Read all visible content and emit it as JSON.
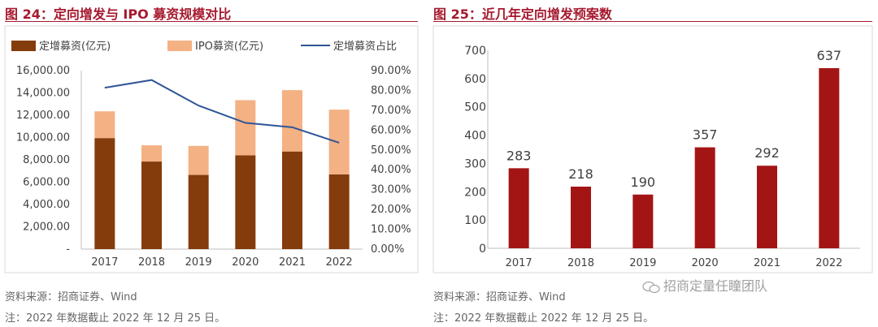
{
  "left_panel": {
    "title": "图 24：定向增发与 IPO 募资规模对比",
    "source": "资料来源：招商证券、Wind",
    "note": "注：2022 年数据截止 2022 年 12 月 25 日。"
  },
  "right_panel": {
    "title": "图 25：近几年定向增发预案数",
    "source": "资料来源：招商证券、Wind",
    "note": "注：2022 年数据截止 2022 年 12 月 25 日。"
  },
  "watermark": {
    "text": "招商定量任瞳团队",
    "icon": "wechat-icon"
  },
  "colors": {
    "title": "#a6192e",
    "bar_placement": "#843c0c",
    "bar_ipo": "#f4b183",
    "line_ratio": "#2f5597",
    "bar_plans": "#a31515"
  },
  "chart_data": [
    {
      "type": "bar",
      "stacked": true,
      "title": "定向增发与 IPO 募资规模对比",
      "categories": [
        "2017",
        "2018",
        "2019",
        "2020",
        "2021",
        "2022"
      ],
      "series": [
        {
          "name": "定增募资(亿元)",
          "axis": "left",
          "values": [
            9950,
            7850,
            6650,
            8400,
            8750,
            6700
          ]
        },
        {
          "name": "IPO募资(亿元)",
          "axis": "left",
          "values": [
            2400,
            1450,
            2600,
            4950,
            5500,
            5800
          ]
        },
        {
          "name": "定增募资占比",
          "type": "line",
          "axis": "right",
          "values": [
            0.8134,
            0.8526,
            0.7237,
            0.6366,
            0.6143,
            0.536
          ]
        }
      ],
      "y_left": {
        "min": 0,
        "max": 16000,
        "ticks": [
          "-",
          "2,000.00",
          "4,000.00",
          "6,000.00",
          "8,000.00",
          "10,000.00",
          "12,000.00",
          "14,000.00",
          "16,000.00"
        ]
      },
      "y_right": {
        "min": 0,
        "max": 0.9,
        "ticks": [
          "0.00%",
          "10.00%",
          "20.00%",
          "30.00%",
          "40.00%",
          "50.00%",
          "60.00%",
          "70.00%",
          "80.00%",
          "90.00%"
        ]
      },
      "legend": "top",
      "grid": false
    },
    {
      "type": "bar",
      "title": "近几年定向增发预案数",
      "categories": [
        "2017",
        "2018",
        "2019",
        "2020",
        "2021",
        "2022"
      ],
      "values": [
        283,
        218,
        190,
        357,
        292,
        637
      ],
      "data_labels": [
        "283",
        "218",
        "190",
        "357",
        "292",
        "637"
      ],
      "y": {
        "min": 0,
        "max": 700,
        "ticks": [
          "0",
          "100",
          "200",
          "300",
          "400",
          "500",
          "600",
          "700"
        ]
      },
      "grid": false
    }
  ]
}
